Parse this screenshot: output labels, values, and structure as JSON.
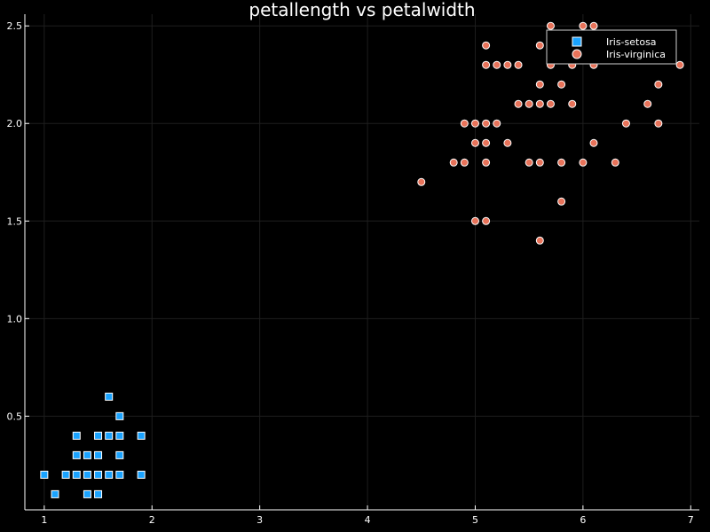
{
  "chart_data": {
    "type": "scatter",
    "title": "petallength vs petalwidth",
    "xlabel": "",
    "ylabel": "",
    "xlim": [
      0.82,
      7.08
    ],
    "ylim": [
      0.02,
      2.56
    ],
    "xticks": [
      1,
      2,
      3,
      4,
      5,
      6,
      7
    ],
    "yticks": [
      0.5,
      1.0,
      1.5,
      2.0,
      2.5
    ],
    "xtick_labels": [
      "1",
      "2",
      "3",
      "4",
      "5",
      "6",
      "7"
    ],
    "ytick_labels": [
      "0.5",
      "1.0",
      "1.5",
      "2.0",
      "2.5"
    ],
    "grid": true,
    "legend_position": "top-right",
    "series": [
      {
        "name": "Iris-setosa",
        "marker": "square",
        "color": "#1aa3ff",
        "points": [
          [
            1.0,
            0.2
          ],
          [
            1.1,
            0.1
          ],
          [
            1.2,
            0.2
          ],
          [
            1.3,
            0.2
          ],
          [
            1.3,
            0.3
          ],
          [
            1.3,
            0.4
          ],
          [
            1.4,
            0.1
          ],
          [
            1.4,
            0.2
          ],
          [
            1.4,
            0.3
          ],
          [
            1.5,
            0.1
          ],
          [
            1.5,
            0.2
          ],
          [
            1.5,
            0.3
          ],
          [
            1.5,
            0.4
          ],
          [
            1.6,
            0.2
          ],
          [
            1.6,
            0.4
          ],
          [
            1.6,
            0.6
          ],
          [
            1.7,
            0.2
          ],
          [
            1.7,
            0.3
          ],
          [
            1.7,
            0.4
          ],
          [
            1.7,
            0.5
          ],
          [
            1.9,
            0.2
          ],
          [
            1.9,
            0.4
          ]
        ]
      },
      {
        "name": "Iris-virginica",
        "marker": "circle",
        "color": "#e8735a",
        "points": [
          [
            4.5,
            1.7
          ],
          [
            4.8,
            1.8
          ],
          [
            4.9,
            1.8
          ],
          [
            4.9,
            2.0
          ],
          [
            5.0,
            1.5
          ],
          [
            5.0,
            1.9
          ],
          [
            5.0,
            2.0
          ],
          [
            5.1,
            1.5
          ],
          [
            5.1,
            1.8
          ],
          [
            5.1,
            1.9
          ],
          [
            5.1,
            2.0
          ],
          [
            5.1,
            2.3
          ],
          [
            5.1,
            2.4
          ],
          [
            5.2,
            2.0
          ],
          [
            5.2,
            2.3
          ],
          [
            5.3,
            1.9
          ],
          [
            5.3,
            2.3
          ],
          [
            5.4,
            2.1
          ],
          [
            5.4,
            2.3
          ],
          [
            5.5,
            1.8
          ],
          [
            5.5,
            2.1
          ],
          [
            5.6,
            1.4
          ],
          [
            5.6,
            1.8
          ],
          [
            5.6,
            2.1
          ],
          [
            5.6,
            2.2
          ],
          [
            5.6,
            2.4
          ],
          [
            5.7,
            2.1
          ],
          [
            5.7,
            2.3
          ],
          [
            5.7,
            2.5
          ],
          [
            5.8,
            1.6
          ],
          [
            5.8,
            1.8
          ],
          [
            5.8,
            2.2
          ],
          [
            5.9,
            2.1
          ],
          [
            5.9,
            2.3
          ],
          [
            6.0,
            1.8
          ],
          [
            6.0,
            2.5
          ],
          [
            6.1,
            1.9
          ],
          [
            6.1,
            2.3
          ],
          [
            6.1,
            2.5
          ],
          [
            6.3,
            1.8
          ],
          [
            6.4,
            2.0
          ],
          [
            6.6,
            2.1
          ],
          [
            6.7,
            2.0
          ],
          [
            6.7,
            2.2
          ],
          [
            6.9,
            2.3
          ]
        ]
      }
    ],
    "colors": {
      "background": "#000000",
      "axis": "#ffffff",
      "grid": "#1e1e1e",
      "text": "#ffffff",
      "marker_stroke": "#ffffff"
    }
  }
}
